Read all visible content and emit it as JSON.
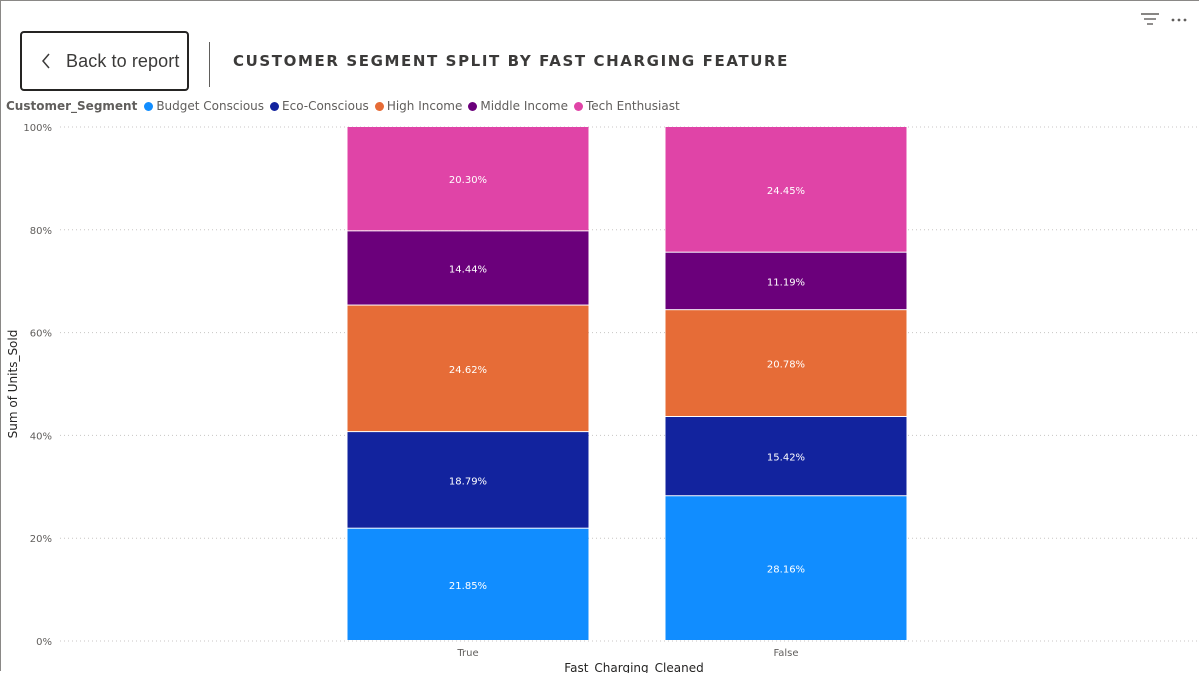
{
  "header": {
    "back_label": "Back to report",
    "title": "CUSTOMER SEGMENT SPLIT BY FAST CHARGING FEATURE"
  },
  "toolbar": {
    "filter_icon": "filter-icon",
    "more_icon": "more-options-icon"
  },
  "legend": {
    "title": "Customer_Segment",
    "items": [
      {
        "name": "Budget Conscious",
        "color": "#118DFF"
      },
      {
        "name": "Eco-Conscious",
        "color": "#12239E"
      },
      {
        "name": "High Income",
        "color": "#E66C37"
      },
      {
        "name": "Middle Income",
        "color": "#6B007B"
      },
      {
        "name": "Tech Enthusiast",
        "color": "#E044A7"
      }
    ]
  },
  "chart_data": {
    "type": "bar",
    "stacked": "100%",
    "categories": [
      "True",
      "False"
    ],
    "xlabel": "Fast_Charging_Cleaned",
    "ylabel": "Sum of Units_Sold",
    "ylim": [
      0,
      100
    ],
    "yticks": [
      "0%",
      "20%",
      "40%",
      "60%",
      "80%",
      "100%"
    ],
    "grid": true,
    "legend_position": "top-left",
    "series": [
      {
        "name": "Budget Conscious",
        "color": "#118DFF",
        "values": [
          21.85,
          28.16
        ],
        "labels": [
          "21.85%",
          "28.16%"
        ]
      },
      {
        "name": "Eco-Conscious",
        "color": "#12239E",
        "values": [
          18.79,
          15.42
        ],
        "labels": [
          "18.79%",
          "15.42%"
        ]
      },
      {
        "name": "High Income",
        "color": "#E66C37",
        "values": [
          24.62,
          20.78
        ],
        "labels": [
          "24.62%",
          "20.78%"
        ]
      },
      {
        "name": "Middle Income",
        "color": "#6B007B",
        "values": [
          14.44,
          11.19
        ],
        "labels": [
          "14.44%",
          "11.19%"
        ]
      },
      {
        "name": "Tech Enthusiast",
        "color": "#E044A7",
        "values": [
          20.3,
          24.45
        ],
        "labels": [
          "20.30%",
          "24.45%"
        ]
      }
    ]
  }
}
